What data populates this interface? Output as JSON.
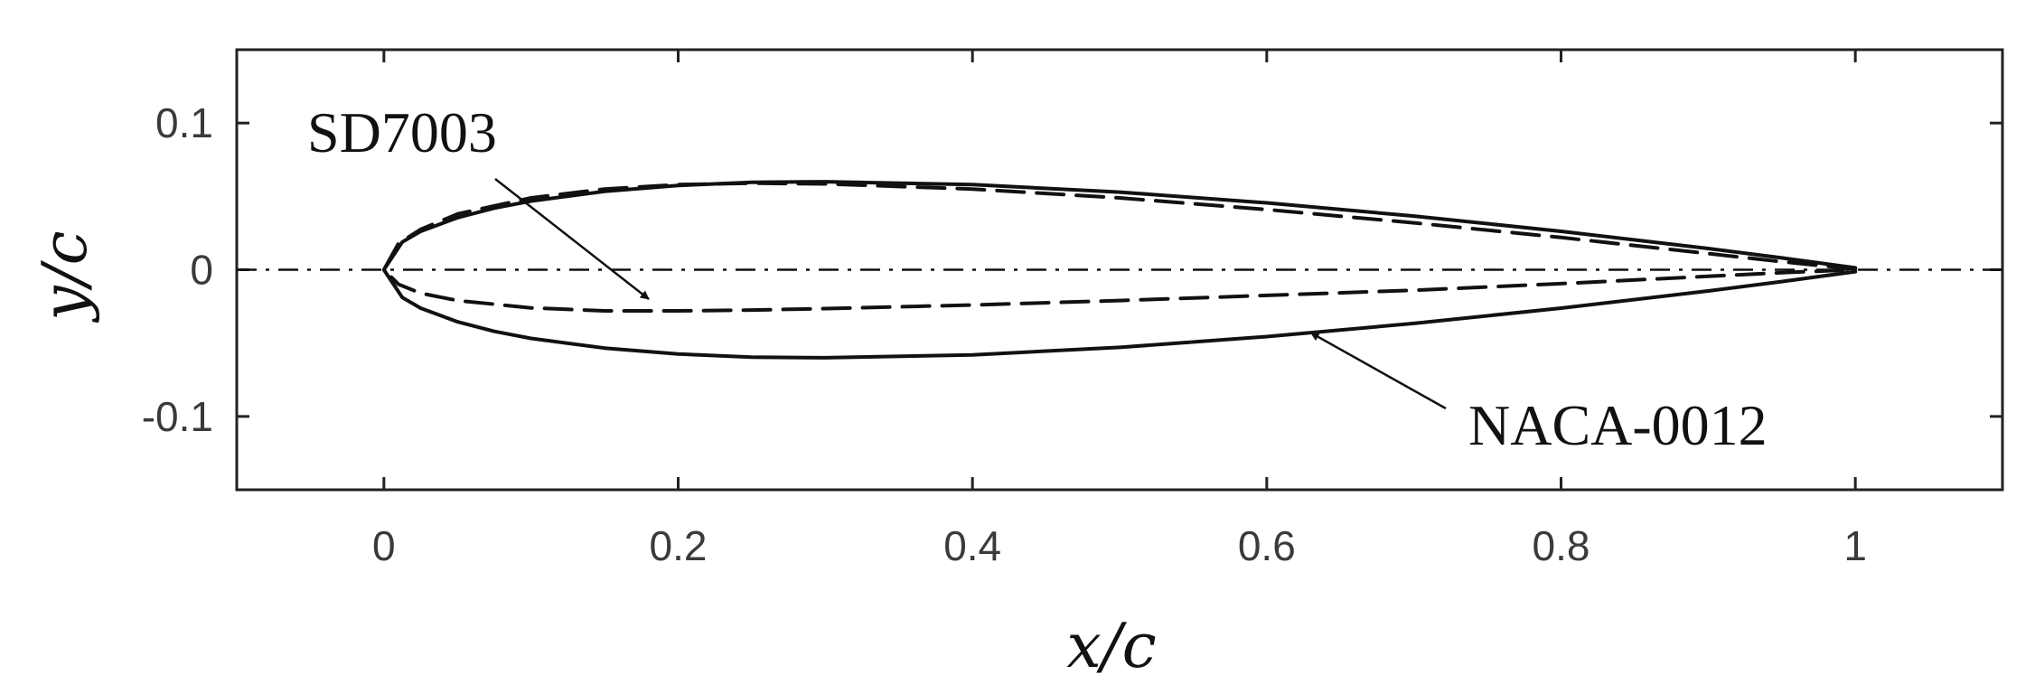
{
  "chart_data": {
    "type": "line",
    "xlabel": "x/c",
    "ylabel": "y/c",
    "xlim": [
      -0.1,
      1.1
    ],
    "ylim": [
      -0.15,
      0.15
    ],
    "xticks": [
      0,
      0.2,
      0.4,
      0.6,
      0.8,
      1
    ],
    "yticks": [
      -0.1,
      0,
      0.1
    ],
    "xtick_labels": [
      "0",
      "0.2",
      "0.4",
      "0.6",
      "0.8",
      "1"
    ],
    "ytick_labels": [
      "-0.1",
      "0",
      "0.1"
    ],
    "grid": false,
    "series": [
      {
        "name": "NACA-0012",
        "style": "solid",
        "upper": {
          "x": [
            0,
            0.0125,
            0.025,
            0.05,
            0.075,
            0.1,
            0.15,
            0.2,
            0.25,
            0.3,
            0.4,
            0.5,
            0.6,
            0.7,
            0.8,
            0.9,
            0.95,
            1.0
          ],
          "y": [
            0,
            0.0189,
            0.0262,
            0.0355,
            0.042,
            0.0468,
            0.0534,
            0.0574,
            0.0596,
            0.06,
            0.058,
            0.0529,
            0.0456,
            0.0366,
            0.0262,
            0.0145,
            0.0081,
            0.0013
          ]
        },
        "lower": {
          "x": [
            0,
            0.0125,
            0.025,
            0.05,
            0.075,
            0.1,
            0.15,
            0.2,
            0.25,
            0.3,
            0.4,
            0.5,
            0.6,
            0.7,
            0.8,
            0.9,
            0.95,
            1.0
          ],
          "y": [
            0,
            -0.0189,
            -0.0262,
            -0.0355,
            -0.042,
            -0.0468,
            -0.0534,
            -0.0574,
            -0.0596,
            -0.06,
            -0.058,
            -0.0529,
            -0.0456,
            -0.0366,
            -0.0262,
            -0.0145,
            -0.0081,
            -0.0013
          ]
        }
      },
      {
        "name": "SD7003",
        "style": "dashed",
        "upper": {
          "x": [
            0,
            0.01,
            0.025,
            0.05,
            0.1,
            0.15,
            0.2,
            0.25,
            0.3,
            0.4,
            0.5,
            0.6,
            0.7,
            0.8,
            0.9,
            0.95,
            1.0
          ],
          "y": [
            0,
            0.018,
            0.0275,
            0.038,
            0.049,
            0.055,
            0.058,
            0.059,
            0.0585,
            0.055,
            0.049,
            0.041,
            0.032,
            0.022,
            0.011,
            0.0055,
            0.0005
          ]
        },
        "lower": {
          "x": [
            0,
            0.01,
            0.025,
            0.05,
            0.1,
            0.15,
            0.2,
            0.25,
            0.3,
            0.4,
            0.5,
            0.6,
            0.7,
            0.8,
            0.9,
            0.95,
            1.0
          ],
          "y": [
            0,
            -0.01,
            -0.016,
            -0.021,
            -0.026,
            -0.028,
            -0.028,
            -0.0275,
            -0.0265,
            -0.024,
            -0.021,
            -0.0175,
            -0.014,
            -0.0095,
            -0.0045,
            -0.002,
            0
          ]
        }
      },
      {
        "name": "chord line",
        "style": "dash-dot",
        "x": [
          -0.1,
          1.1
        ],
        "y": [
          0,
          0
        ]
      }
    ],
    "annotations": [
      {
        "text": "SD7003",
        "target": {
          "x": 0.18,
          "y": -0.02
        }
      },
      {
        "text": "NACA-0012",
        "target": {
          "x": 0.63,
          "y": -0.043
        }
      }
    ]
  }
}
